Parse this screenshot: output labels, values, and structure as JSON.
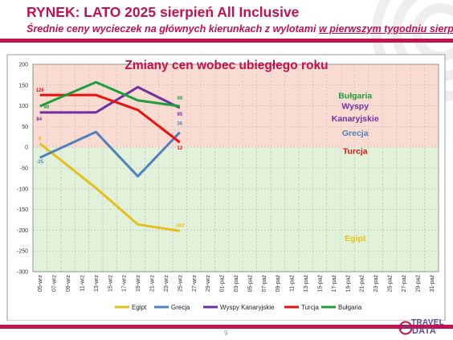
{
  "header": {
    "title": "RYNEK: LATO 2025 sierpień All Inclusive",
    "subtitle_main": "Średnie ceny wycieczek na głównych kierunkach z wylotami ",
    "subtitle_underlined": "w pierwszym tygodniu sierpnia"
  },
  "footer": {
    "page_number": "9",
    "logo_line1": "TRAVEL",
    "logo_line2": "DATA"
  },
  "colors": {
    "brand": "#c0134f",
    "up_zone": "#fadbd2",
    "down_zone": "#e2f1da"
  },
  "chart_data": {
    "type": "line",
    "title": "Zmiany cen wobec ubiegłego roku",
    "xlabel": "",
    "ylabel": "",
    "ylim": [
      -300,
      200
    ],
    "yticks": [
      200,
      150,
      100,
      50,
      0,
      -50,
      -100,
      -150,
      -200,
      -250,
      -300
    ],
    "categories": [
      "05-wrz",
      "07-wrz",
      "09-wrz",
      "11-wrz",
      "13-wrz",
      "15-wrz",
      "17-wrz",
      "19-wrz",
      "21-wrz",
      "23-wrz",
      "25-wrz",
      "27-wrz",
      "29-wrz",
      "01-paź",
      "03-paź",
      "05-paź",
      "07-paź",
      "09-paź",
      "11-paź",
      "13-paź",
      "15-paź",
      "17-paź",
      "19-paź",
      "21-paź",
      "23-paź",
      "25-paź",
      "27-paź",
      "29-paź",
      "31-paź"
    ],
    "grid": true,
    "legend_position": "bottom",
    "series": [
      {
        "name": "Egipt",
        "color": "#e6c01a",
        "x": [
          "05-wrz",
          "13-wrz",
          "19-wrz",
          "25-wrz"
        ],
        "values": [
          9,
          -98,
          -186,
          -202
        ],
        "labels": [
          {
            "x": "05-wrz",
            "text": "9"
          },
          {
            "x": "25-wrz",
            "text": "-202"
          }
        ]
      },
      {
        "name": "Grecja",
        "color": "#4f81bd",
        "x": [
          "05-wrz",
          "13-wrz",
          "19-wrz",
          "25-wrz"
        ],
        "values": [
          -25,
          37,
          -70,
          36
        ],
        "labels": [
          {
            "x": "05-wrz",
            "text": "-25"
          },
          {
            "x": "25-wrz",
            "text": "36"
          }
        ]
      },
      {
        "name": "Wyspy Kanaryjskie",
        "color": "#7030a0",
        "x": [
          "05-wrz",
          "13-wrz",
          "19-wrz",
          "25-wrz"
        ],
        "values": [
          84,
          84,
          145,
          95
        ],
        "labels": [
          {
            "x": "05-wrz",
            "text": "84"
          },
          {
            "x": "25-wrz",
            "text": "95"
          }
        ]
      },
      {
        "name": "Turcja",
        "color": "#e8130f",
        "x": [
          "05-wrz",
          "13-wrz",
          "19-wrz",
          "25-wrz"
        ],
        "values": [
          126,
          126,
          90,
          12
        ],
        "labels": [
          {
            "x": "05-wrz",
            "text": "126"
          },
          {
            "x": "25-wrz",
            "text": "12"
          }
        ]
      },
      {
        "name": "Bułgaria",
        "color": "#1e9e3a",
        "x": [
          "05-wrz",
          "13-wrz",
          "19-wrz",
          "25-wrz"
        ],
        "values": [
          99,
          157,
          113,
          99
        ],
        "labels": [
          {
            "x": "05-wrz",
            "text": "99"
          },
          {
            "x": "25-wrz",
            "text": "99"
          }
        ]
      }
    ],
    "annotations": [
      {
        "text": "Bułgaria",
        "color": "#1e9e3a",
        "x": "21-paź",
        "y": 118
      },
      {
        "text": "Wyspy",
        "color": "#7030a0",
        "x": "21-paź",
        "y": 92
      },
      {
        "text": "Kanaryjskie",
        "color": "#7030a0",
        "x": "21-paź",
        "y": 62
      },
      {
        "text": "Grecja",
        "color": "#4f81bd",
        "x": "21-paź",
        "y": 28
      },
      {
        "text": "Turcja",
        "color": "#e8130f",
        "x": "21-paź",
        "y": -16
      },
      {
        "text": "Egipt",
        "color": "#e6c01a",
        "x": "21-paź",
        "y": -226
      }
    ]
  }
}
